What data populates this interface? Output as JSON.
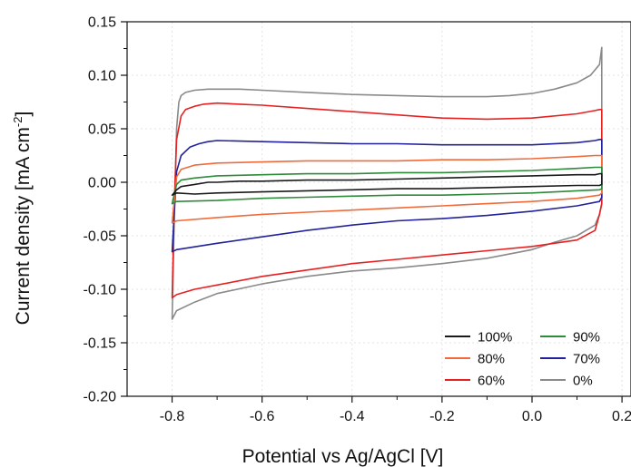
{
  "chart_data": {
    "type": "line",
    "title": "",
    "xlabel": "Potential vs Ag/AgCl [V]",
    "ylabel_main": "Current density [mA cm",
    "ylabel_sup": "-2",
    "ylabel_close": "]",
    "xlim": [
      -0.9,
      0.22
    ],
    "ylim": [
      -0.2,
      0.15
    ],
    "xticks": [
      -0.8,
      -0.6,
      -0.4,
      -0.2,
      0.0,
      0.2
    ],
    "xtick_labels": [
      "-0.8",
      "-0.6",
      "-0.4",
      "-0.2",
      "0.0",
      "0.2"
    ],
    "yticks": [
      -0.2,
      -0.15,
      -0.1,
      -0.05,
      0.0,
      0.05,
      0.1,
      0.15
    ],
    "ytick_labels": [
      "-0.20",
      "-0.15",
      "-0.10",
      "-0.05",
      "0.00",
      "0.05",
      "0.10",
      "0.15"
    ],
    "grid": true,
    "legend_position": "bottom-right",
    "series": [
      {
        "name": "100%",
        "color": "#1a1a1a",
        "x": [
          -0.8,
          -0.79,
          -0.78,
          -0.75,
          -0.72,
          -0.7,
          -0.65,
          -0.6,
          -0.5,
          -0.4,
          -0.3,
          -0.2,
          -0.1,
          0.0,
          0.1,
          0.14,
          0.15,
          0.155,
          0.155,
          0.15,
          0.1,
          0.0,
          -0.1,
          -0.2,
          -0.3,
          -0.4,
          -0.5,
          -0.6,
          -0.7,
          -0.75,
          -0.79,
          -0.8
        ],
        "y": [
          -0.012,
          -0.007,
          -0.004,
          -0.002,
          0.0,
          0.0,
          0.001,
          0.001,
          0.002,
          0.002,
          0.003,
          0.004,
          0.005,
          0.006,
          0.007,
          0.007,
          0.008,
          0.008,
          -0.002,
          -0.003,
          -0.003,
          -0.004,
          -0.005,
          -0.006,
          -0.006,
          -0.007,
          -0.008,
          -0.009,
          -0.01,
          -0.011,
          -0.01,
          -0.012
        ]
      },
      {
        "name": "90%",
        "color": "#2e8b3a",
        "x": [
          -0.8,
          -0.79,
          -0.78,
          -0.75,
          -0.7,
          -0.6,
          -0.5,
          -0.4,
          -0.3,
          -0.2,
          -0.1,
          0.0,
          0.1,
          0.14,
          0.15,
          0.155,
          0.155,
          0.15,
          0.1,
          0.0,
          -0.1,
          -0.2,
          -0.3,
          -0.4,
          -0.5,
          -0.6,
          -0.7,
          -0.79,
          -0.8
        ],
        "y": [
          -0.02,
          -0.002,
          0.002,
          0.004,
          0.006,
          0.007,
          0.008,
          0.008,
          0.009,
          0.009,
          0.01,
          0.011,
          0.013,
          0.014,
          0.014,
          0.014,
          -0.006,
          -0.007,
          -0.008,
          -0.01,
          -0.011,
          -0.012,
          -0.012,
          -0.013,
          -0.014,
          -0.015,
          -0.017,
          -0.018,
          -0.02
        ]
      },
      {
        "name": "80%",
        "color": "#f06b3a",
        "x": [
          -0.8,
          -0.79,
          -0.78,
          -0.75,
          -0.7,
          -0.6,
          -0.5,
          -0.4,
          -0.3,
          -0.2,
          -0.1,
          0.0,
          0.1,
          0.14,
          0.15,
          0.155,
          0.155,
          0.15,
          0.1,
          0.0,
          -0.1,
          -0.2,
          -0.3,
          -0.4,
          -0.5,
          -0.6,
          -0.7,
          -0.79,
          -0.8
        ],
        "y": [
          -0.038,
          0.005,
          0.012,
          0.016,
          0.018,
          0.019,
          0.02,
          0.02,
          0.02,
          0.021,
          0.021,
          0.022,
          0.024,
          0.025,
          0.025,
          0.025,
          -0.01,
          -0.012,
          -0.015,
          -0.018,
          -0.02,
          -0.022,
          -0.024,
          -0.026,
          -0.028,
          -0.03,
          -0.033,
          -0.036,
          -0.038
        ]
      },
      {
        "name": "70%",
        "color": "#22229a",
        "x": [
          -0.8,
          -0.79,
          -0.78,
          -0.76,
          -0.74,
          -0.72,
          -0.7,
          -0.6,
          -0.5,
          -0.4,
          -0.3,
          -0.2,
          -0.1,
          0.0,
          0.1,
          0.14,
          0.15,
          0.155,
          0.155,
          0.15,
          0.1,
          0.0,
          -0.1,
          -0.2,
          -0.3,
          -0.4,
          -0.5,
          -0.6,
          -0.7,
          -0.79,
          -0.8
        ],
        "y": [
          -0.065,
          0.01,
          0.025,
          0.033,
          0.036,
          0.038,
          0.039,
          0.038,
          0.037,
          0.036,
          0.036,
          0.035,
          0.035,
          0.035,
          0.037,
          0.039,
          0.04,
          0.04,
          -0.014,
          -0.018,
          -0.022,
          -0.027,
          -0.031,
          -0.034,
          -0.036,
          -0.04,
          -0.045,
          -0.051,
          -0.057,
          -0.063,
          -0.065
        ]
      },
      {
        "name": "60%",
        "color": "#e52222",
        "x": [
          -0.8,
          -0.795,
          -0.79,
          -0.78,
          -0.77,
          -0.75,
          -0.73,
          -0.7,
          -0.65,
          -0.6,
          -0.5,
          -0.4,
          -0.3,
          -0.2,
          -0.1,
          0.0,
          0.1,
          0.14,
          0.15,
          0.155,
          0.155,
          0.15,
          0.14,
          0.1,
          0.0,
          -0.1,
          -0.2,
          -0.3,
          -0.4,
          -0.5,
          -0.6,
          -0.7,
          -0.75,
          -0.79,
          -0.8
        ],
        "y": [
          -0.108,
          -0.02,
          0.04,
          0.062,
          0.068,
          0.071,
          0.073,
          0.074,
          0.073,
          0.072,
          0.069,
          0.066,
          0.063,
          0.06,
          0.059,
          0.06,
          0.064,
          0.067,
          0.068,
          0.068,
          -0.02,
          -0.03,
          -0.045,
          -0.054,
          -0.06,
          -0.064,
          -0.068,
          -0.072,
          -0.076,
          -0.082,
          -0.088,
          -0.096,
          -0.1,
          -0.105,
          -0.108
        ]
      },
      {
        "name": "0%",
        "color": "#8a8a8a",
        "x": [
          -0.8,
          -0.795,
          -0.79,
          -0.785,
          -0.78,
          -0.77,
          -0.75,
          -0.72,
          -0.7,
          -0.65,
          -0.6,
          -0.5,
          -0.4,
          -0.3,
          -0.2,
          -0.1,
          -0.05,
          0.0,
          0.05,
          0.1,
          0.13,
          0.15,
          0.155,
          0.155,
          0.15,
          0.14,
          0.1,
          0.05,
          0.0,
          -0.1,
          -0.2,
          -0.3,
          -0.4,
          -0.5,
          -0.6,
          -0.7,
          -0.75,
          -0.79,
          -0.8
        ],
        "y": [
          -0.128,
          -0.03,
          0.05,
          0.075,
          0.081,
          0.084,
          0.086,
          0.087,
          0.087,
          0.087,
          0.086,
          0.084,
          0.082,
          0.081,
          0.08,
          0.08,
          0.081,
          0.083,
          0.087,
          0.093,
          0.1,
          0.11,
          0.126,
          -0.02,
          -0.03,
          -0.04,
          -0.05,
          -0.056,
          -0.063,
          -0.071,
          -0.076,
          -0.08,
          -0.083,
          -0.088,
          -0.095,
          -0.104,
          -0.112,
          -0.12,
          -0.128
        ]
      }
    ]
  }
}
